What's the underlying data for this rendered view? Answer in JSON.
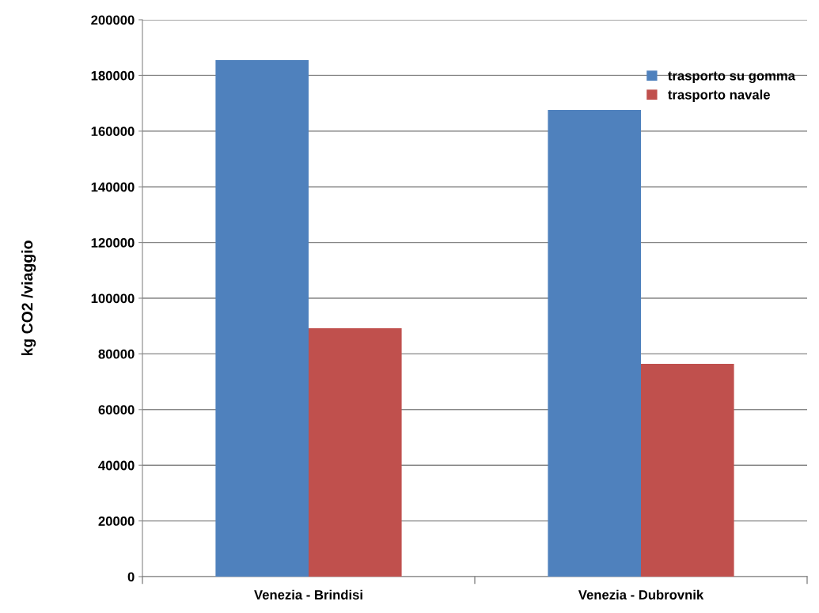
{
  "chart_data": {
    "type": "bar",
    "ylabel": "kg CO2 /viaggio",
    "categories": [
      "Venezia - Brindisi",
      "Venezia - Dubrovnik"
    ],
    "series": [
      {
        "name": "trasporto su gomma",
        "color": "#4f81bd",
        "values": [
          185500,
          167600
        ]
      },
      {
        "name": "trasporto navale",
        "color": "#c0504d",
        "values": [
          89200,
          76400
        ]
      }
    ],
    "ylim": [
      0,
      200000
    ],
    "yticks": [
      0,
      20000,
      40000,
      60000,
      80000,
      100000,
      120000,
      140000,
      160000,
      180000,
      200000
    ],
    "grid": "y",
    "legend": "top right"
  }
}
